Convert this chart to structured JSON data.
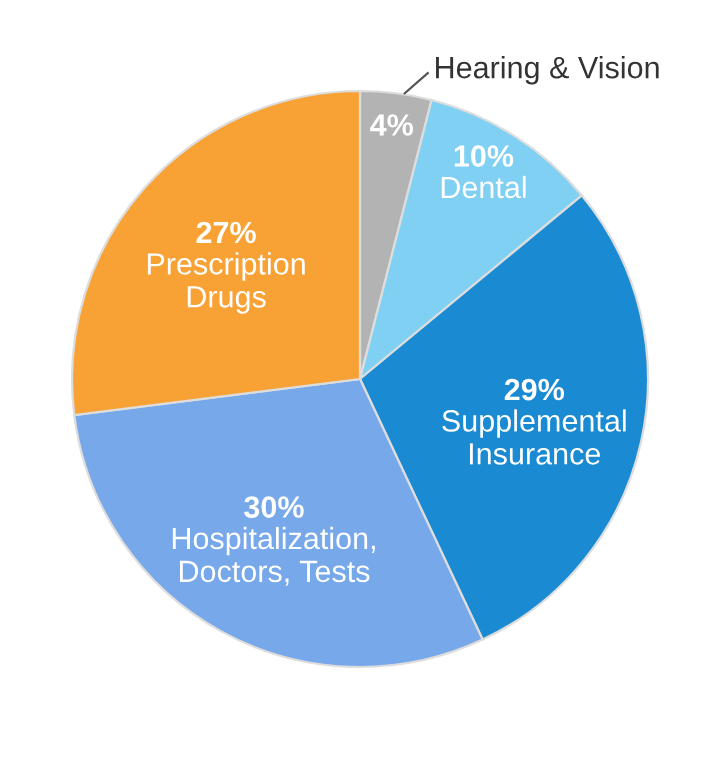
{
  "chart_data": {
    "type": "pie",
    "categories": [
      "Hearing & Vision",
      "Dental",
      "Supplemental\nInsurance",
      "Hospitalization,\nDoctors, Tests",
      "Prescription\nDrugs"
    ],
    "values": [
      4,
      10,
      29,
      30,
      27
    ],
    "value_labels": [
      "4%",
      "10%",
      "29%",
      "30%",
      "27%"
    ],
    "colors": [
      "#b3b3b3",
      "#80d0f4",
      "#1a8bd3",
      "#76a8ea",
      "#f8a236"
    ]
  }
}
